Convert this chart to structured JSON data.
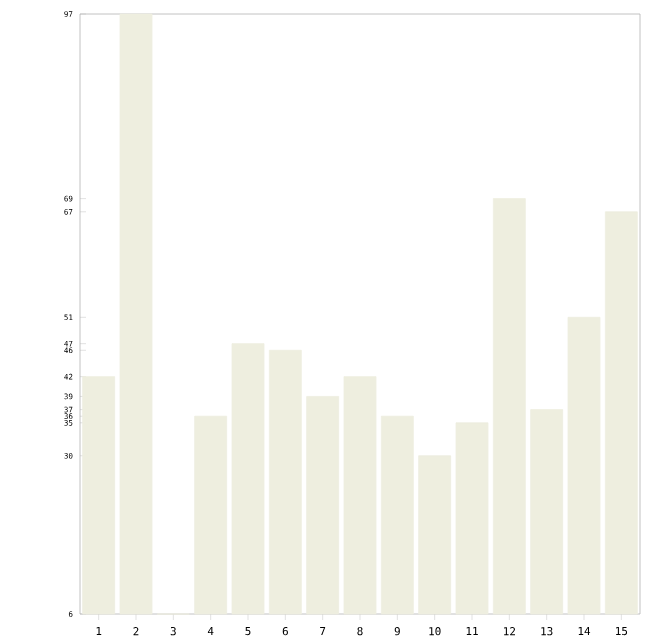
{
  "chart_data": {
    "type": "bar",
    "categories": [
      "1",
      "2",
      "3",
      "4",
      "5",
      "6",
      "7",
      "8",
      "9",
      "10",
      "11",
      "12",
      "13",
      "14",
      "15"
    ],
    "values": [
      42,
      97,
      6,
      36,
      47,
      46,
      39,
      42,
      36,
      30,
      35,
      69,
      37,
      51,
      67
    ],
    "color": "#eeeedf",
    "ylim": [
      6,
      97
    ],
    "yticks": [
      6,
      30,
      35,
      36,
      37,
      39,
      42,
      46,
      47,
      51,
      67,
      69,
      97
    ],
    "grid": false
  }
}
